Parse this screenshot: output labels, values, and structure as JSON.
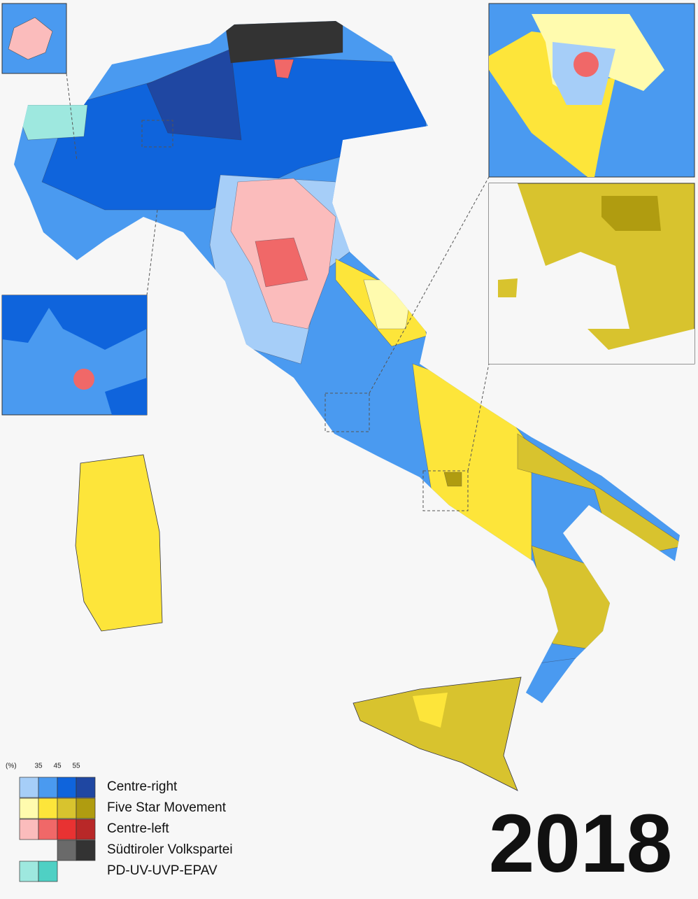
{
  "year": "2018",
  "legend": {
    "unit": "(%)",
    "thresholds": [
      35,
      45,
      55
    ],
    "parties": [
      {
        "name": "Centre-right",
        "colors": [
          "#a6cef8",
          "#4a9af0",
          "#0f64dc",
          "#1f47a2"
        ]
      },
      {
        "name": "Five Star Movement",
        "colors": [
          "#fffbae",
          "#fde53a",
          "#d8c32e",
          "#b09c10"
        ]
      },
      {
        "name": "Centre-left",
        "colors": [
          "#fbbcbc",
          "#f06868",
          "#e83232",
          "#b82828"
        ]
      },
      {
        "name": "Südtiroler Volkspartei",
        "colors": [
          null,
          null,
          "#6a6a6a",
          "#333333"
        ]
      },
      {
        "name": "PD-UV-UVP-EPAV",
        "colors": [
          "#9ee8df",
          "#4fd0c4",
          null,
          null
        ]
      }
    ]
  }
}
